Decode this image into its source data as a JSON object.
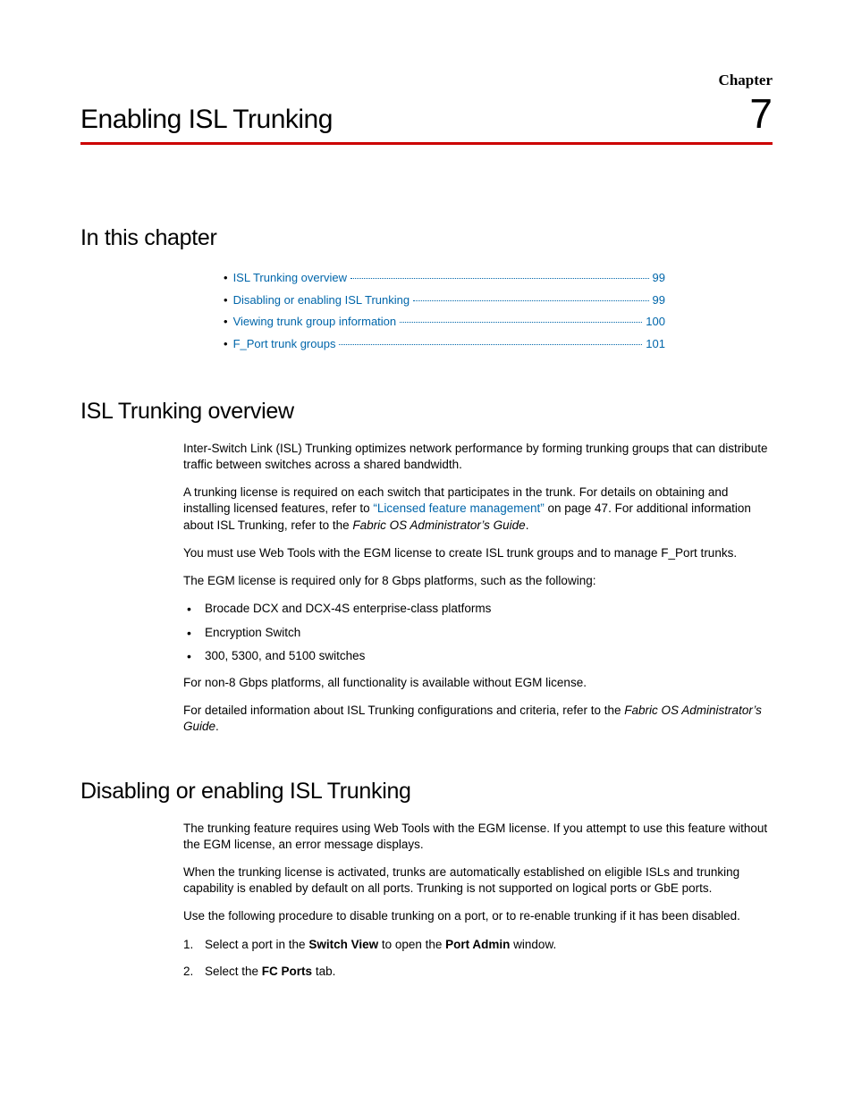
{
  "colors": {
    "rule": "#cc0000",
    "link": "#0066aa",
    "text": "#000000",
    "background": "#ffffff"
  },
  "typography": {
    "body_font": "Arial",
    "heading_font": "Arial Narrow",
    "body_size_pt": 10,
    "h1_size_pt": 22,
    "h2_size_pt": 19,
    "chapter_num_size_pt": 34
  },
  "header": {
    "chapter_label": "Chapter",
    "title": "Enabling ISL Trunking",
    "chapter_number": "7"
  },
  "sections": {
    "in_this_chapter": {
      "heading": "In this chapter",
      "toc": [
        {
          "label": "ISL Trunking overview",
          "page": "99"
        },
        {
          "label": "Disabling or enabling ISL Trunking",
          "page": "99"
        },
        {
          "label": "Viewing trunk group information",
          "page": "100"
        },
        {
          "label": "F_Port trunk groups",
          "page": "101"
        }
      ]
    },
    "overview": {
      "heading": "ISL Trunking overview",
      "p1": "Inter-Switch Link (ISL) Trunking optimizes network performance by forming trunking groups that can distribute traffic between switches across a shared bandwidth.",
      "p2a": "A trunking license is required on each switch that participates in the trunk. For details on obtaining and installing licensed features, refer to ",
      "p2_link": "“Licensed feature management”",
      "p2b": " on page 47. For additional information about ISL Trunking, refer to the ",
      "p2_italic": "Fabric OS Administrator’s Guide",
      "p2c": ".",
      "p3": "You must use Web Tools with the EGM license to create ISL trunk groups and to manage F_Port trunks.",
      "p4": "The EGM license is required only for 8 Gbps platforms, such as the following:",
      "bullets": [
        "Brocade DCX and DCX-4S enterprise-class platforms",
        "Encryption Switch",
        "300, 5300, and 5100 switches"
      ],
      "p5": "For non-8 Gbps platforms, all functionality is available without EGM license.",
      "p6a": "For detailed information about ISL Trunking configurations and criteria, refer to the ",
      "p6_italic": "Fabric OS Administrator’s Guide",
      "p6b": "."
    },
    "disabling": {
      "heading": "Disabling or enabling ISL Trunking",
      "p1": "The trunking feature requires using Web Tools with the EGM license. If you attempt to use this feature without the EGM license, an error message displays.",
      "p2": "When the trunking license is activated, trunks are automatically established on eligible ISLs and trunking capability is enabled by default on all ports. Trunking is not supported on logical ports or GbE ports.",
      "p3": "Use the following procedure to disable trunking on a port, or to re-enable trunking if it has been disabled.",
      "step1a": "Select a port in the ",
      "step1_bold1": "Switch View",
      "step1b": " to open the ",
      "step1_bold2": "Port Admin",
      "step1c": " window.",
      "step2a": "Select the ",
      "step2_bold": "FC Ports",
      "step2b": " tab."
    }
  }
}
